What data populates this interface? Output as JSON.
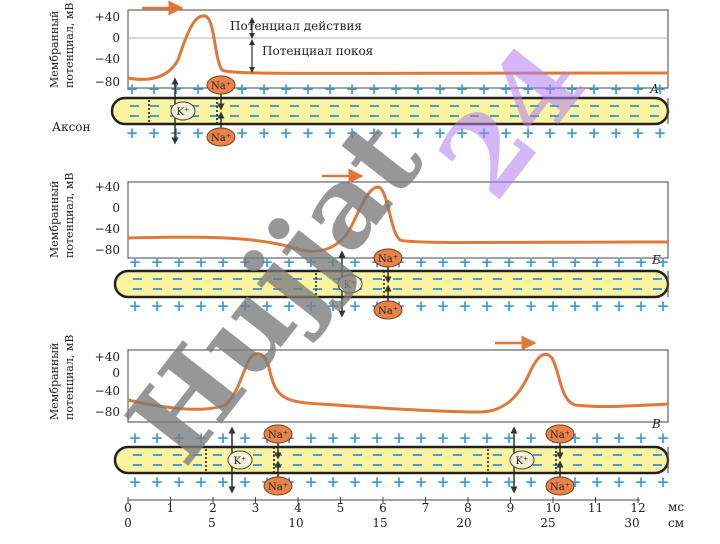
{
  "panels": [
    {
      "id": "A",
      "ylabel_line1": "Мембранный",
      "ylabel_line2": "потенциал, мВ",
      "yticks": [
        "+40",
        "0",
        "−40",
        "−80"
      ],
      "letter": "А",
      "annotations": {
        "action": "Потенциал действия",
        "rest": "Потенциал покоя"
      },
      "axon_label": "Аксон",
      "ions": {
        "na_top": "Na⁺",
        "k": "K⁺",
        "na_bottom": "Na⁺"
      }
    },
    {
      "id": "B",
      "ylabel_line1": "Мембранный",
      "ylabel_line2": "потенциал, мВ",
      "yticks": [
        "+40",
        "0",
        "−40",
        "−80"
      ],
      "letter": "Б",
      "ions": {
        "na_top": "Na⁺",
        "k": "K⁺",
        "na_bottom": "Na⁺"
      }
    },
    {
      "id": "C",
      "ylabel_line1": "Мембранный",
      "ylabel_line2": "потенциал, мВ",
      "yticks": [
        "+40",
        "0",
        "−40",
        "−80"
      ],
      "letter": "В",
      "ions": {
        "na_top": "Na⁺",
        "k": "K⁺",
        "na_bottom": "Na⁺"
      }
    }
  ],
  "time_axis": {
    "ticks": [
      "0",
      "1",
      "2",
      "3",
      "4",
      "5",
      "6",
      "7",
      "8",
      "9",
      "10",
      "11",
      "12"
    ],
    "unit": "мс"
  },
  "distance_axis": {
    "ticks": [
      "0",
      "5",
      "10",
      "15",
      "20",
      "25",
      "30"
    ],
    "unit": "см"
  },
  "watermark": "Hujjat 24",
  "colors": {
    "trace": "#e07838",
    "axon_fill": "#fbf3a0",
    "ion": "#e8834a",
    "plus": "#3fa0d8",
    "minus": "#3fa0d8"
  }
}
